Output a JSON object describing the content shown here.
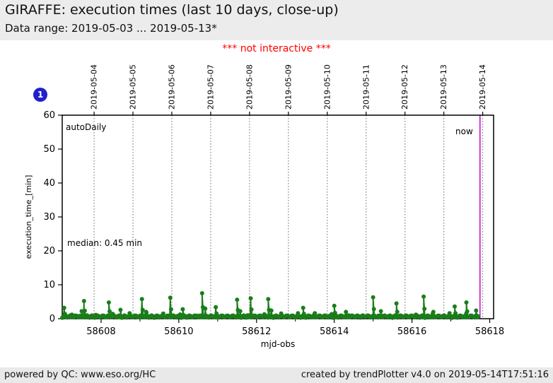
{
  "page": {
    "title": "GIRAFFE: execution times (last 10 days, close-up)",
    "subtitle": "Data range: 2019-05-03 ... 2019-05-13*",
    "notice": "*** not interactive ***",
    "badge_label": "1"
  },
  "footer": {
    "left": "powered by QC: www.eso.org/HC",
    "right": "created by trendPlotter v4.0 on 2019-05-14T17:51:16"
  },
  "colors": {
    "series_green": "#1a7d1a",
    "now_magenta": "#cc00cc",
    "notice_red": "#ff0000",
    "badge_blue": "#2121cc",
    "band_gray": "#ececec",
    "grid_gray": "#666666",
    "spine_black": "#000000"
  },
  "chart_data": {
    "type": "line",
    "title": "GIRAFFE execution times close-up",
    "xlabel": "mjd-obs",
    "ylabel": "execution_time_[min]",
    "xlim": [
      58607.0,
      58618.1
    ],
    "ylim": [
      0,
      60
    ],
    "x_ticks": [
      58608,
      58610,
      58612,
      58614,
      58616,
      58618
    ],
    "x_minor_ticks": [
      58609,
      58611,
      58613,
      58615,
      58617
    ],
    "y_ticks": [
      0,
      10,
      20,
      30,
      40,
      50,
      60
    ],
    "top_axis_dates": [
      "2019-05-04",
      "2019-05-05",
      "2019-05-06",
      "2019-05-07",
      "2019-05-08",
      "2019-05-09",
      "2019-05-10",
      "2019-05-11",
      "2019-05-12",
      "2019-05-13",
      "2019-05-14"
    ],
    "date_gridline_mjds": [
      58607.82,
      58608.82,
      58609.82,
      58610.82,
      58611.82,
      58612.82,
      58613.82,
      58614.82,
      58615.82,
      58616.82,
      58617.82
    ],
    "grid_on": true,
    "legend_position": "none",
    "series_label": "autoDaily",
    "median_label": "median: 0.45 min",
    "median_min": 0.45,
    "now_label": "now",
    "now_mjd": 58617.75,
    "data_start_mjd": 58607.0,
    "data_end_mjd": 58617.7,
    "baseline": {
      "level_min": 0.45,
      "noise_min": 0.2,
      "noise_max": 0.9,
      "points_per_day": 30
    },
    "spikes": [
      {
        "mjd": 58607.05,
        "min": 3.2
      },
      {
        "mjd": 58607.25,
        "min": 1.2
      },
      {
        "mjd": 58607.5,
        "min": 2.2
      },
      {
        "mjd": 58607.56,
        "min": 5.2
      },
      {
        "mjd": 58607.64,
        "min": 1.0
      },
      {
        "mjd": 58608.2,
        "min": 4.8
      },
      {
        "mjd": 58608.5,
        "min": 2.6
      },
      {
        "mjd": 58609.05,
        "min": 5.8
      },
      {
        "mjd": 58609.16,
        "min": 2.0
      },
      {
        "mjd": 58609.78,
        "min": 6.2
      },
      {
        "mjd": 58610.1,
        "min": 2.8
      },
      {
        "mjd": 58610.6,
        "min": 7.5
      },
      {
        "mjd": 58610.68,
        "min": 3.0
      },
      {
        "mjd": 58610.95,
        "min": 3.4
      },
      {
        "mjd": 58611.5,
        "min": 5.6
      },
      {
        "mjd": 58611.58,
        "min": 2.2
      },
      {
        "mjd": 58611.85,
        "min": 6.0
      },
      {
        "mjd": 58612.3,
        "min": 5.8
      },
      {
        "mjd": 58612.38,
        "min": 2.4
      },
      {
        "mjd": 58613.2,
        "min": 3.2
      },
      {
        "mjd": 58613.5,
        "min": 1.6
      },
      {
        "mjd": 58614.0,
        "min": 3.8
      },
      {
        "mjd": 58614.3,
        "min": 2.0
      },
      {
        "mjd": 58615.0,
        "min": 6.3
      },
      {
        "mjd": 58615.2,
        "min": 2.2
      },
      {
        "mjd": 58615.6,
        "min": 4.5
      },
      {
        "mjd": 58616.3,
        "min": 6.5
      },
      {
        "mjd": 58616.55,
        "min": 2.0
      },
      {
        "mjd": 58617.1,
        "min": 3.6
      },
      {
        "mjd": 58617.4,
        "min": 4.8
      },
      {
        "mjd": 58617.65,
        "min": 2.4
      }
    ]
  }
}
